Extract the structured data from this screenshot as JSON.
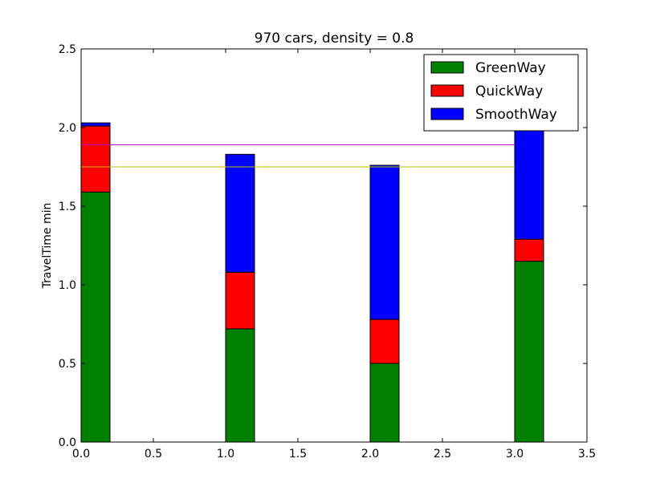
{
  "chart_data": {
    "type": "bar",
    "stacked": true,
    "title": "970 cars, density = 0.8",
    "xlabel": "",
    "ylabel": "TravelTime min",
    "xlim": [
      0.0,
      3.5
    ],
    "ylim": [
      0.0,
      2.5
    ],
    "xticks": [
      "0.0",
      "0.5",
      "1.0",
      "1.5",
      "2.0",
      "2.5",
      "3.0",
      "3.5"
    ],
    "yticks": [
      "0.0",
      "0.5",
      "1.0",
      "1.5",
      "2.0",
      "2.5"
    ],
    "bar_positions": [
      0.0,
      1.0,
      2.0,
      3.0
    ],
    "bar_width": 0.2,
    "series": [
      {
        "name": "GreenWay",
        "color": "#008000",
        "values": [
          1.59,
          0.72,
          0.5,
          1.15
        ]
      },
      {
        "name": "QuickWay",
        "color": "#ff0000",
        "values": [
          0.42,
          0.36,
          0.28,
          0.14
        ]
      },
      {
        "name": "SmoothWay",
        "color": "#0000ff",
        "values": [
          0.02,
          0.75,
          0.98,
          0.71
        ]
      }
    ],
    "hlines": [
      {
        "y": 1.89,
        "color": "#bf00bf"
      },
      {
        "y": 1.75,
        "color": "#bfbf00"
      }
    ],
    "legend_position": "top-right",
    "grid": false
  }
}
